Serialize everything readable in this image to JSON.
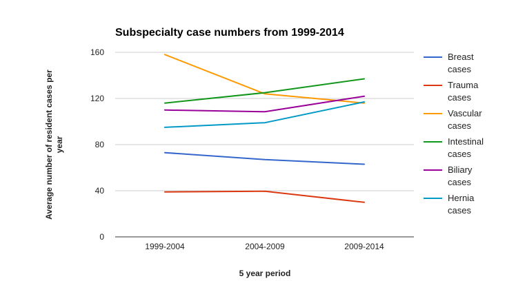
{
  "chart_data": {
    "type": "line",
    "title": "Subspecialty case numbers from 1999-2014",
    "xlabel": "5 year period",
    "ylabel": "Average number of resident cases per year",
    "ylim": [
      0,
      160
    ],
    "yticks": [
      0,
      40,
      80,
      120,
      160
    ],
    "grid": true,
    "legend_position": "right",
    "categories": [
      "1999-2004",
      "2004-2009",
      "2009-2014"
    ],
    "series": [
      {
        "name": "Breast cases",
        "color": "#3366cc",
        "values": [
          73,
          67,
          63
        ]
      },
      {
        "name": "Trauma cases",
        "color": "#dc3912",
        "values": [
          39,
          39.5,
          30
        ]
      },
      {
        "name": "Vascular cases",
        "color": "#ff9900",
        "values": [
          158,
          124,
          116
        ]
      },
      {
        "name": "Intestinal cases",
        "color": "#109618",
        "values": [
          116,
          125,
          137
        ]
      },
      {
        "name": "Biliary cases",
        "color": "#990099",
        "values": [
          110,
          108.5,
          122
        ]
      },
      {
        "name": "Hernia cases",
        "color": "#0099c6",
        "values": [
          95,
          99,
          117
        ]
      }
    ]
  }
}
